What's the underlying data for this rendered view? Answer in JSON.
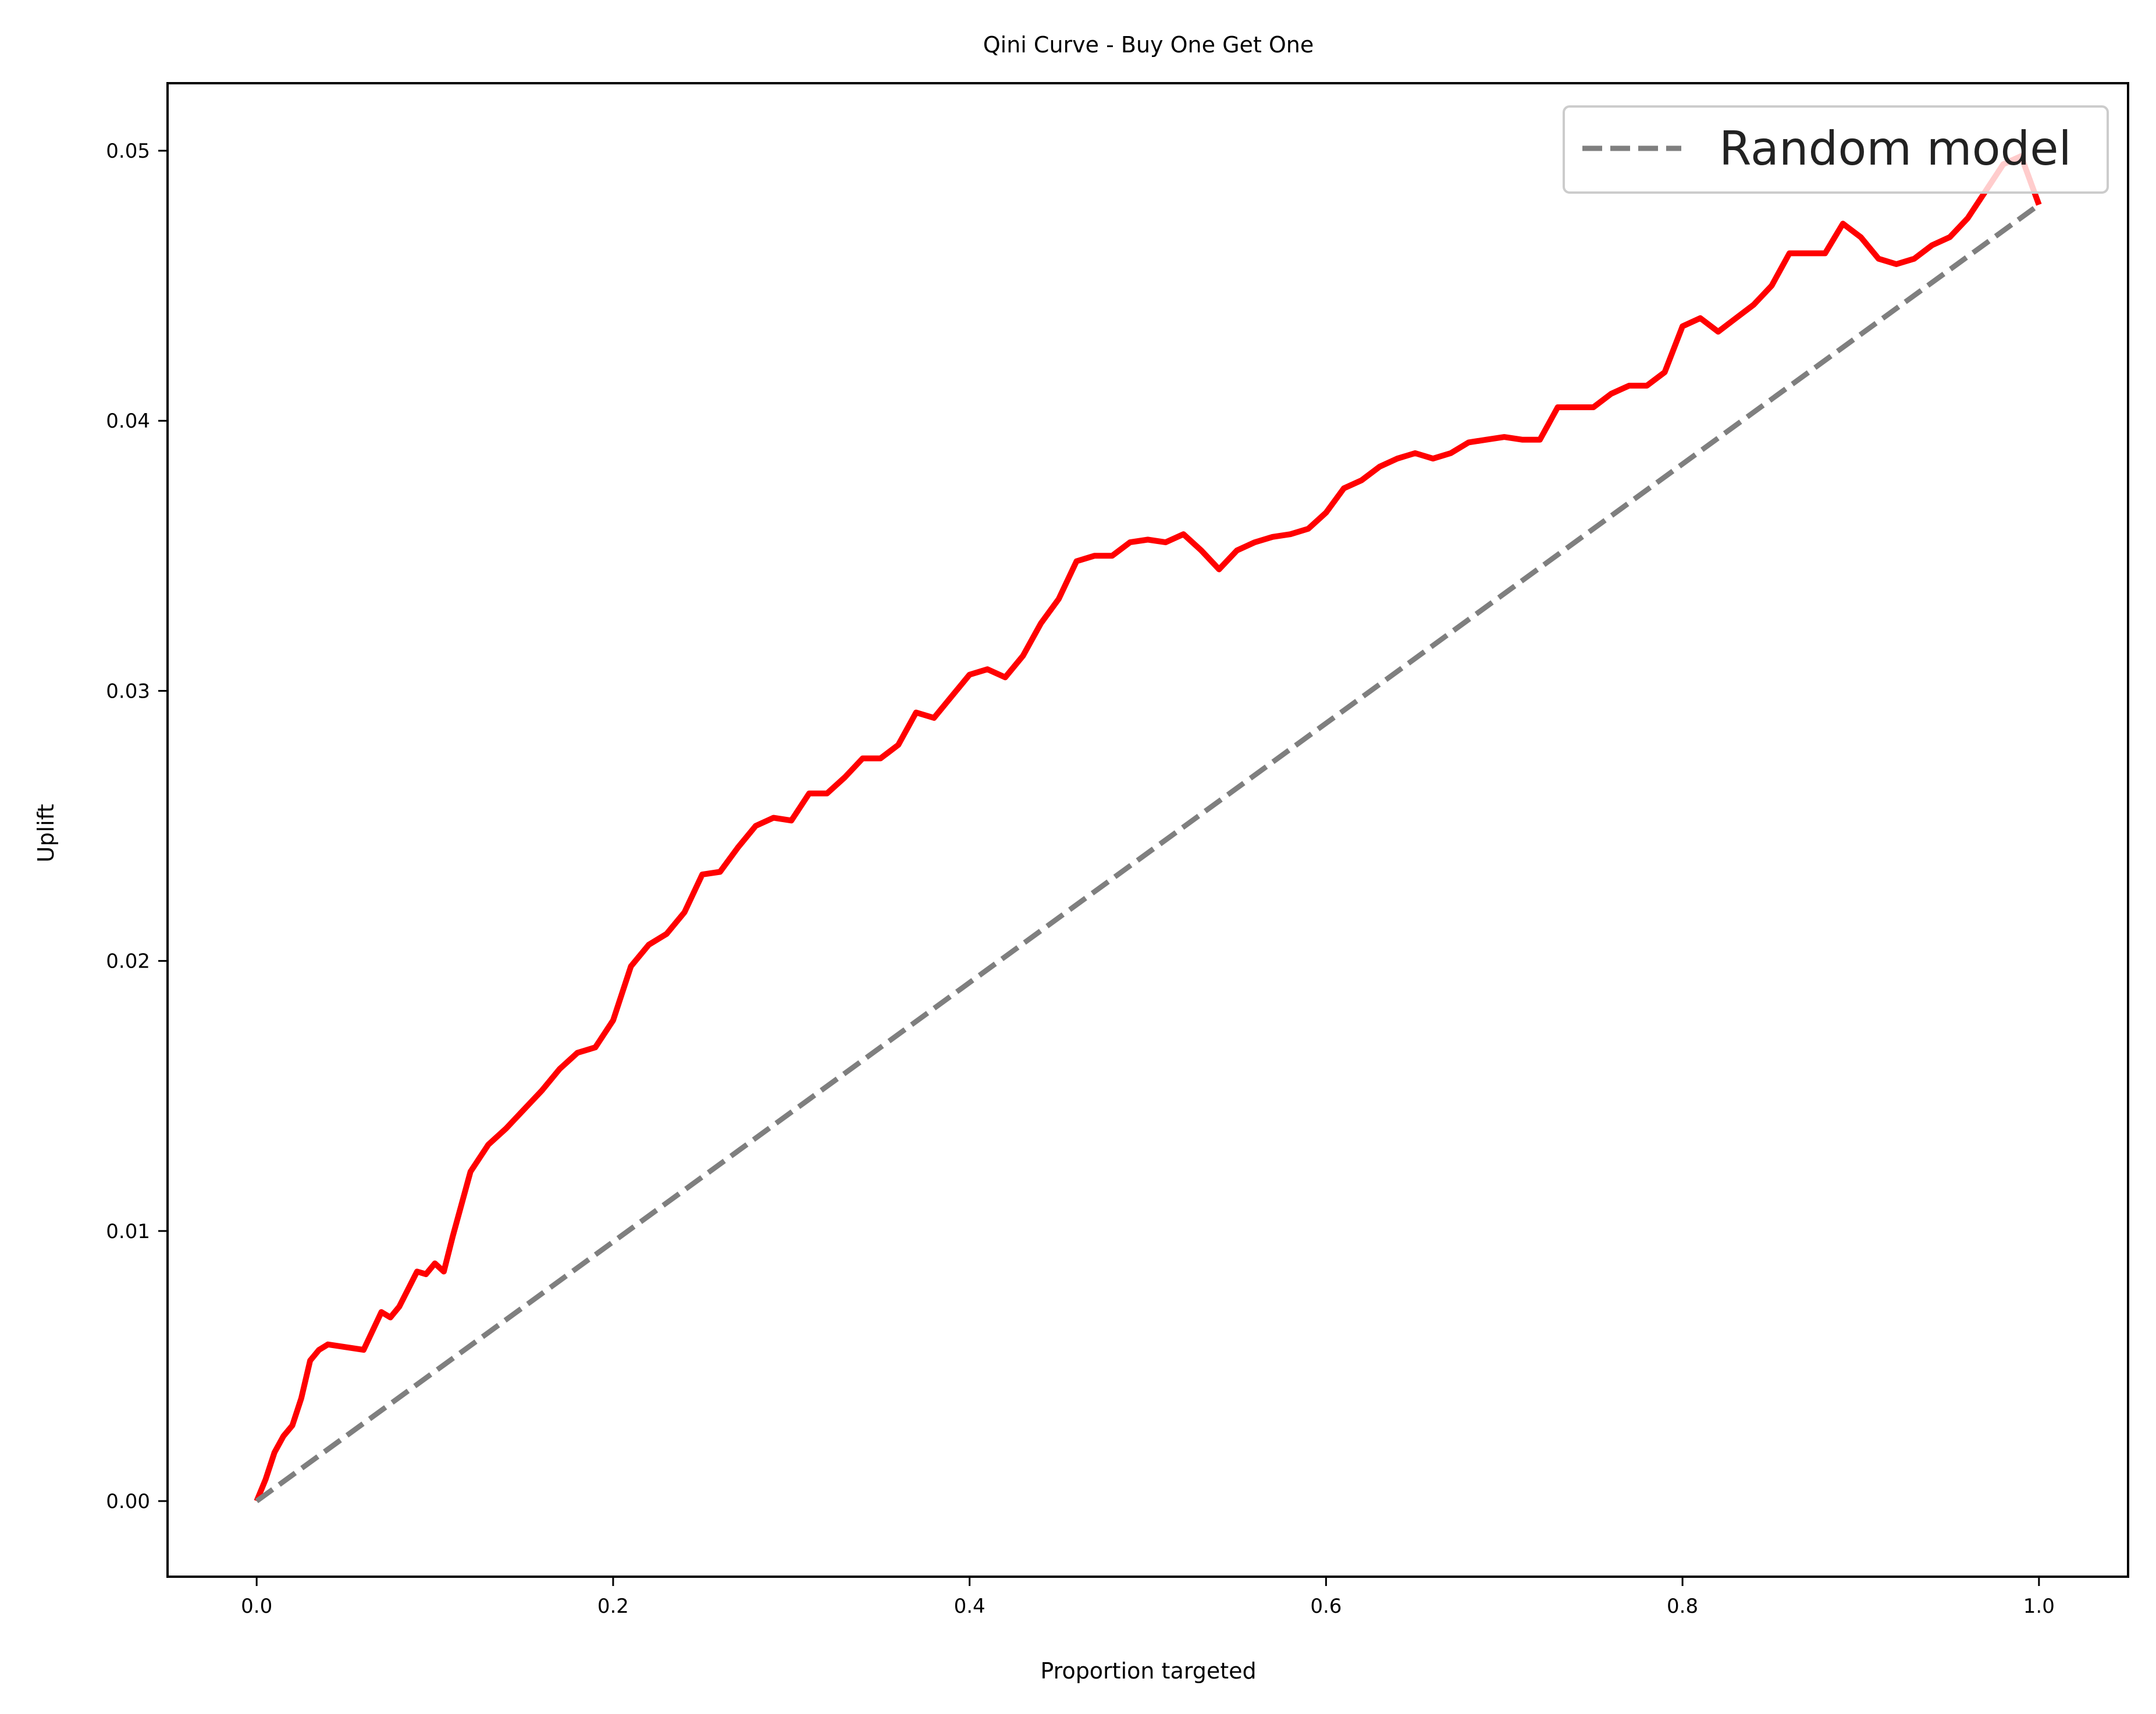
{
  "chart_data": {
    "type": "line",
    "title": "Qini Curve - Buy One Get One",
    "xlabel": "Proportion targeted",
    "ylabel": "Uplift",
    "xlim": [
      -0.05,
      1.05
    ],
    "ylim": [
      -0.0028,
      0.0525
    ],
    "xticks": [
      0.0,
      0.2,
      0.4,
      0.6,
      0.8,
      1.0
    ],
    "xtick_labels": [
      "0.0",
      "0.2",
      "0.4",
      "0.6",
      "0.8",
      "1.0"
    ],
    "yticks": [
      0.0,
      0.01,
      0.02,
      0.03,
      0.04,
      0.05
    ],
    "ytick_labels": [
      "0.00",
      "0.01",
      "0.02",
      "0.03",
      "0.04",
      "0.05"
    ],
    "grid": false,
    "legend_position": "upper right",
    "legend": [
      "Random model"
    ],
    "series": [
      {
        "color": "#ff0000",
        "style": "solid",
        "x": [
          0.0,
          0.005,
          0.01,
          0.015,
          0.02,
          0.025,
          0.03,
          0.035,
          0.04,
          0.05,
          0.06,
          0.07,
          0.075,
          0.08,
          0.09,
          0.095,
          0.1,
          0.105,
          0.11,
          0.12,
          0.13,
          0.14,
          0.15,
          0.16,
          0.17,
          0.18,
          0.19,
          0.2,
          0.21,
          0.22,
          0.23,
          0.24,
          0.25,
          0.26,
          0.27,
          0.28,
          0.29,
          0.3,
          0.31,
          0.32,
          0.33,
          0.34,
          0.35,
          0.36,
          0.37,
          0.38,
          0.39,
          0.4,
          0.41,
          0.42,
          0.43,
          0.44,
          0.45,
          0.46,
          0.47,
          0.48,
          0.49,
          0.5,
          0.51,
          0.52,
          0.53,
          0.54,
          0.55,
          0.56,
          0.57,
          0.58,
          0.59,
          0.6,
          0.61,
          0.62,
          0.63,
          0.64,
          0.65,
          0.66,
          0.67,
          0.68,
          0.69,
          0.7,
          0.71,
          0.72,
          0.73,
          0.74,
          0.75,
          0.76,
          0.77,
          0.78,
          0.79,
          0.8,
          0.81,
          0.82,
          0.83,
          0.84,
          0.85,
          0.86,
          0.87,
          0.88,
          0.89,
          0.9,
          0.91,
          0.92,
          0.93,
          0.94,
          0.95,
          0.96,
          0.97,
          0.98,
          0.99,
          1.0
        ],
        "values": [
          0.0,
          0.0008,
          0.0018,
          0.0024,
          0.0028,
          0.0038,
          0.0052,
          0.0056,
          0.0058,
          0.0057,
          0.0056,
          0.007,
          0.0068,
          0.0072,
          0.0085,
          0.0084,
          0.0088,
          0.0085,
          0.0098,
          0.0122,
          0.0132,
          0.0138,
          0.0145,
          0.0152,
          0.016,
          0.0166,
          0.0168,
          0.0178,
          0.0198,
          0.0206,
          0.021,
          0.0218,
          0.0232,
          0.0233,
          0.0242,
          0.025,
          0.0253,
          0.0252,
          0.0262,
          0.0262,
          0.0268,
          0.0275,
          0.0275,
          0.028,
          0.0292,
          0.029,
          0.0298,
          0.0306,
          0.0308,
          0.0305,
          0.0313,
          0.0325,
          0.0334,
          0.0348,
          0.035,
          0.035,
          0.0355,
          0.0356,
          0.0355,
          0.0358,
          0.0352,
          0.0345,
          0.0352,
          0.0355,
          0.0357,
          0.0358,
          0.036,
          0.0366,
          0.0375,
          0.0378,
          0.0383,
          0.0386,
          0.0388,
          0.0386,
          0.0388,
          0.0392,
          0.0393,
          0.0394,
          0.0393,
          0.0393,
          0.0405,
          0.0405,
          0.0405,
          0.041,
          0.0413,
          0.0413,
          0.0418,
          0.0435,
          0.0438,
          0.0433,
          0.0438,
          0.0443,
          0.045,
          0.0462,
          0.0462,
          0.0462,
          0.0473,
          0.0468,
          0.046,
          0.0458,
          0.046,
          0.0465,
          0.0468,
          0.0475,
          0.0485,
          0.0495,
          0.0498,
          0.048
        ]
      },
      {
        "name": "Random model",
        "color": "#7f7f7f",
        "style": "dashed",
        "x": [
          0.0,
          1.0
        ],
        "values": [
          0.0,
          0.048
        ]
      }
    ]
  }
}
